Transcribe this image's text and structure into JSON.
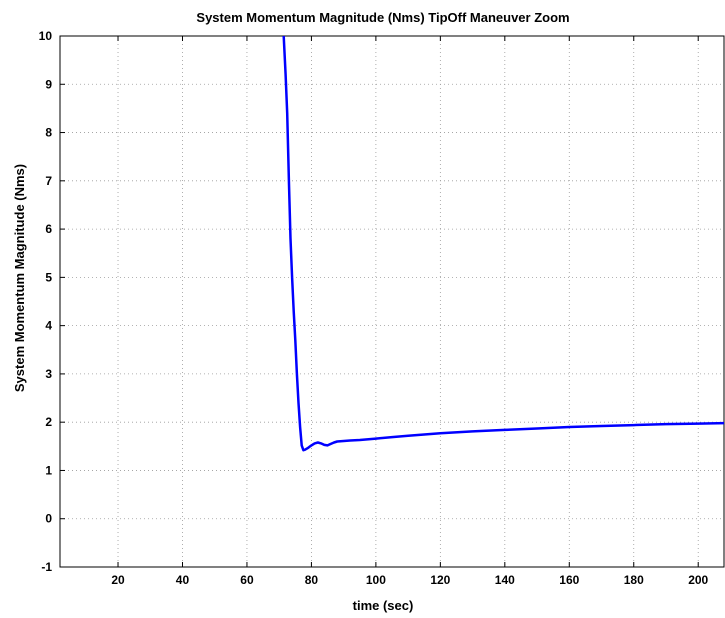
{
  "chart_data": {
    "type": "line",
    "title": "System Momentum  Magnitude (Nms) TipOff Maneuver Zoom",
    "xlabel": "time (sec)",
    "ylabel": "System Momentum  Magnitude (Nms)",
    "xlim": [
      2,
      208
    ],
    "ylim": [
      -1,
      10
    ],
    "xticks": [
      20,
      40,
      60,
      80,
      100,
      120,
      140,
      160,
      180,
      200
    ],
    "yticks": [
      -1,
      0,
      1,
      2,
      3,
      4,
      5,
      6,
      7,
      8,
      9,
      10
    ],
    "grid": true,
    "line_color": "#0000ff",
    "series": [
      {
        "x": [
          71.4,
          72.0,
          72.5,
          73.0,
          73.5,
          74.0,
          74.5,
          75.0,
          75.5,
          76.0,
          76.5,
          77.0,
          77.5,
          78.0,
          79.0,
          80.0,
          81.0,
          82.0,
          83.0,
          84.0,
          85.0,
          86.0,
          87.0,
          88.0,
          90.0,
          92.0,
          95.0,
          100.0,
          105.0,
          110.0,
          120.0,
          130.0,
          140.0,
          150.0,
          160.0,
          170.0,
          180.0,
          190.0,
          200.0,
          208.0
        ],
        "y": [
          10.0,
          9.2,
          8.4,
          7.0,
          5.8,
          5.0,
          4.3,
          3.7,
          3.0,
          2.4,
          1.9,
          1.52,
          1.42,
          1.43,
          1.47,
          1.52,
          1.56,
          1.58,
          1.56,
          1.53,
          1.52,
          1.55,
          1.58,
          1.6,
          1.61,
          1.62,
          1.63,
          1.66,
          1.69,
          1.72,
          1.77,
          1.81,
          1.84,
          1.87,
          1.9,
          1.92,
          1.94,
          1.96,
          1.97,
          1.98
        ]
      }
    ]
  }
}
